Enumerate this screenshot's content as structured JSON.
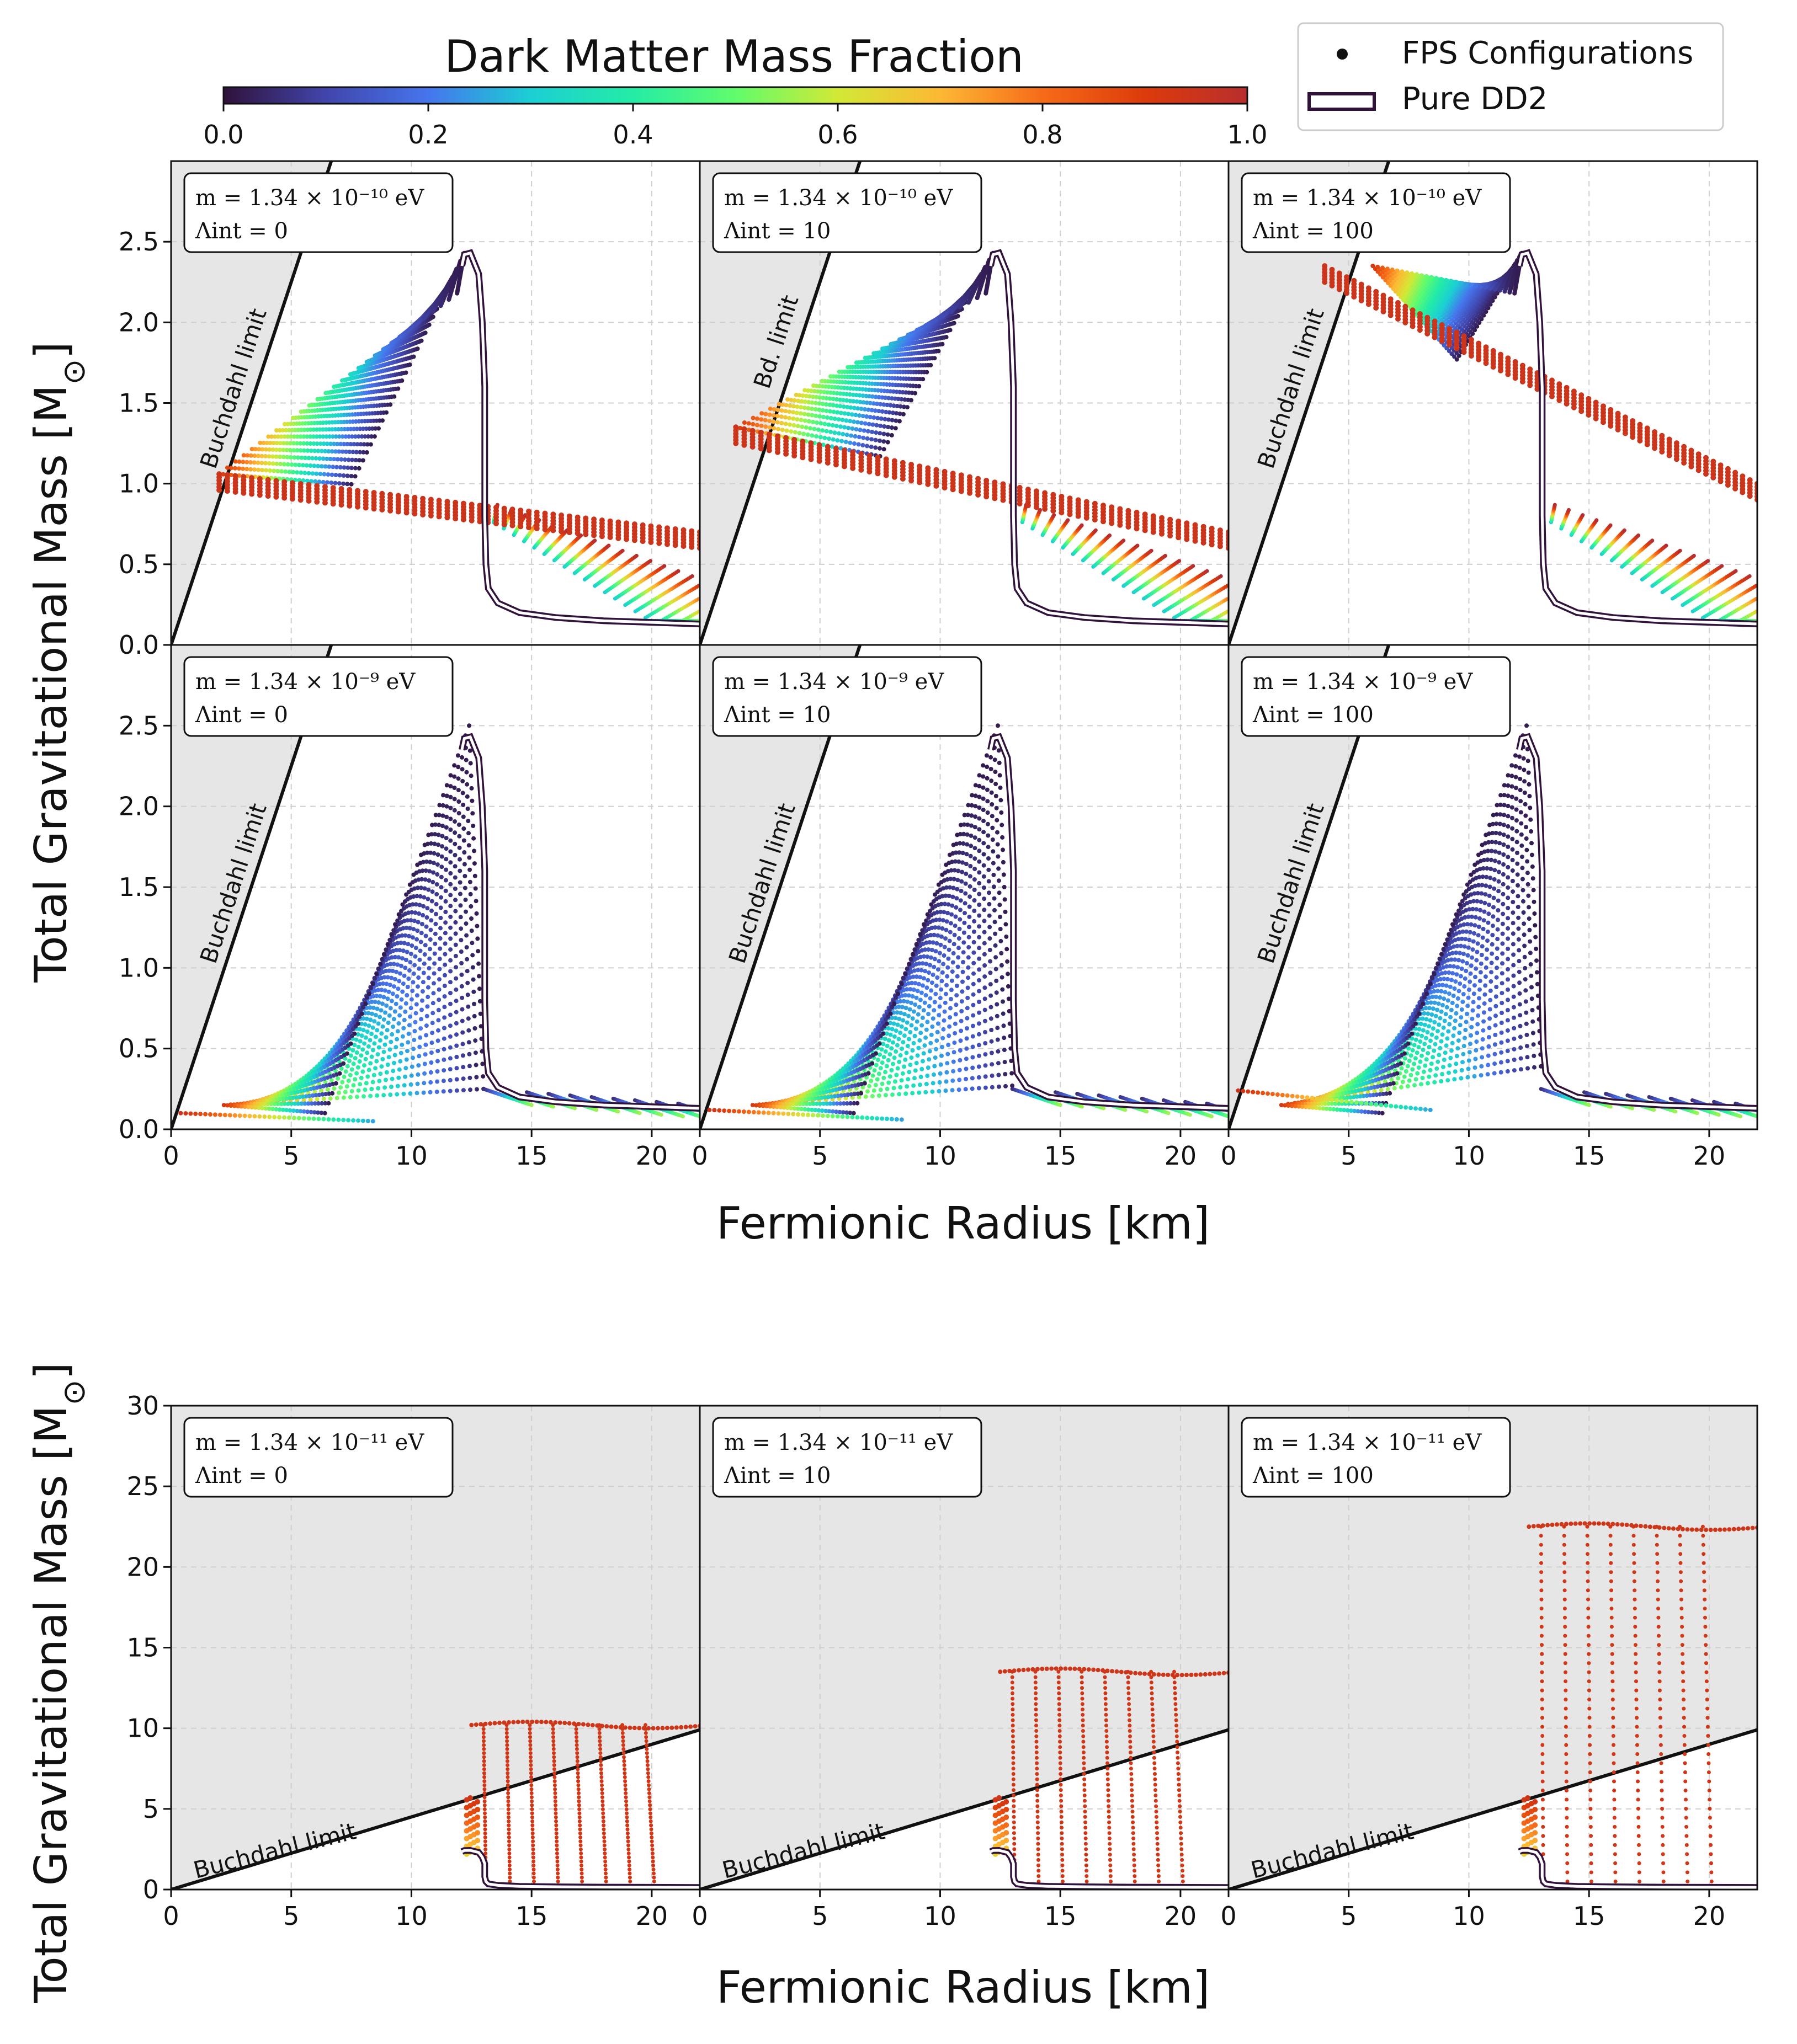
{
  "colorbar": {
    "title": "Dark Matter Mass Fraction",
    "ticks": [
      "0.0",
      "0.2",
      "0.4",
      "0.6",
      "0.8",
      "1.0"
    ]
  },
  "legend": {
    "fps_label": "FPS Configurations",
    "dd2_label": "Pure DD2"
  },
  "labels": {
    "xlabel": "Fermionic Radius [km]",
    "ylabel": "Total Gravitational Mass [M",
    "ylabel_sub": "⊙",
    "ylabel_close": "]"
  },
  "annotations": {
    "m10": "m = 1.34 × 10⁻¹⁰ eV",
    "m9": "m = 1.34 × 10⁻⁹ eV",
    "m11": "m = 1.34 × 10⁻¹¹ eV",
    "L0": "Λint = 0",
    "L10": "Λint = 10",
    "L100": "Λint = 100"
  },
  "chart_data": [
    {
      "type": "scatter",
      "row": 1,
      "col": 1,
      "mass_eV": "1.34e-10",
      "lambda_int": 0,
      "xlabel": "Fermionic Radius [km]",
      "ylabel": "Total Gravitational Mass [M☉]",
      "xlim": [
        0,
        22
      ],
      "ylim": [
        0,
        3.0
      ],
      "yticks": [
        "0.0",
        "0.5",
        "1.0",
        "1.5",
        "2.0",
        "2.5"
      ],
      "buchdahl_label": "Buchdahl limit",
      "dd2_max_mass": 2.43,
      "low_fraction_peak": [
        12.2,
        2.43
      ],
      "high_fraction_branch_start": [
        2,
        1.06
      ]
    },
    {
      "type": "scatter",
      "row": 1,
      "col": 2,
      "mass_eV": "1.34e-10",
      "lambda_int": 10,
      "xlim": [
        0,
        22
      ],
      "ylim": [
        0,
        3.0
      ],
      "buchdahl_label": "Bd. limit",
      "dd2_max_mass": 2.43,
      "high_fraction_branch_start": [
        1.5,
        1.35
      ]
    },
    {
      "type": "scatter",
      "row": 1,
      "col": 3,
      "mass_eV": "1.34e-10",
      "lambda_int": 100,
      "xlim": [
        0,
        22
      ],
      "ylim": [
        0,
        3.0
      ],
      "buchdahl_label": "Buchdahl limit",
      "dd2_max_mass": 2.43,
      "high_fraction_branch_start": [
        4,
        2.35
      ]
    },
    {
      "type": "scatter",
      "row": 2,
      "col": 1,
      "mass_eV": "1.34e-9",
      "lambda_int": 0,
      "xlim": [
        0,
        22
      ],
      "ylim": [
        0,
        3.0
      ],
      "xticks": [
        "0",
        "5",
        "10",
        "15",
        "20"
      ],
      "buchdahl_label": "Buchdahl limit",
      "dd2_max_mass": 2.43
    },
    {
      "type": "scatter",
      "row": 2,
      "col": 2,
      "mass_eV": "1.34e-9",
      "lambda_int": 10,
      "xlim": [
        0,
        22
      ],
      "ylim": [
        0,
        3.0
      ],
      "buchdahl_label": "Buchdahl limit",
      "dd2_max_mass": 2.43
    },
    {
      "type": "scatter",
      "row": 2,
      "col": 3,
      "mass_eV": "1.34e-9",
      "lambda_int": 100,
      "xlim": [
        0,
        22
      ],
      "ylim": [
        0,
        3.0
      ],
      "buchdahl_label": "Buchdahl limit",
      "dd2_max_mass": 2.43
    },
    {
      "type": "scatter",
      "row": 3,
      "col": 1,
      "mass_eV": "1.34e-11",
      "lambda_int": 0,
      "xlim": [
        0,
        22
      ],
      "ylim": [
        0,
        30
      ],
      "yticks": [
        "0",
        "5",
        "10",
        "15",
        "20",
        "25",
        "30"
      ],
      "buchdahl_label": "Buchdahl limit",
      "plateau_mass": 10.2
    },
    {
      "type": "scatter",
      "row": 3,
      "col": 2,
      "mass_eV": "1.34e-11",
      "lambda_int": 10,
      "xlim": [
        0,
        22
      ],
      "ylim": [
        0,
        30
      ],
      "buchdahl_label": "Buchdahl limit",
      "plateau_mass": 13.5
    },
    {
      "type": "scatter",
      "row": 3,
      "col": 3,
      "mass_eV": "1.34e-11",
      "lambda_int": 100,
      "xlim": [
        0,
        22
      ],
      "ylim": [
        0,
        30
      ],
      "buchdahl_label": "Buchdahl limit",
      "plateau_mass": 22.5
    }
  ]
}
